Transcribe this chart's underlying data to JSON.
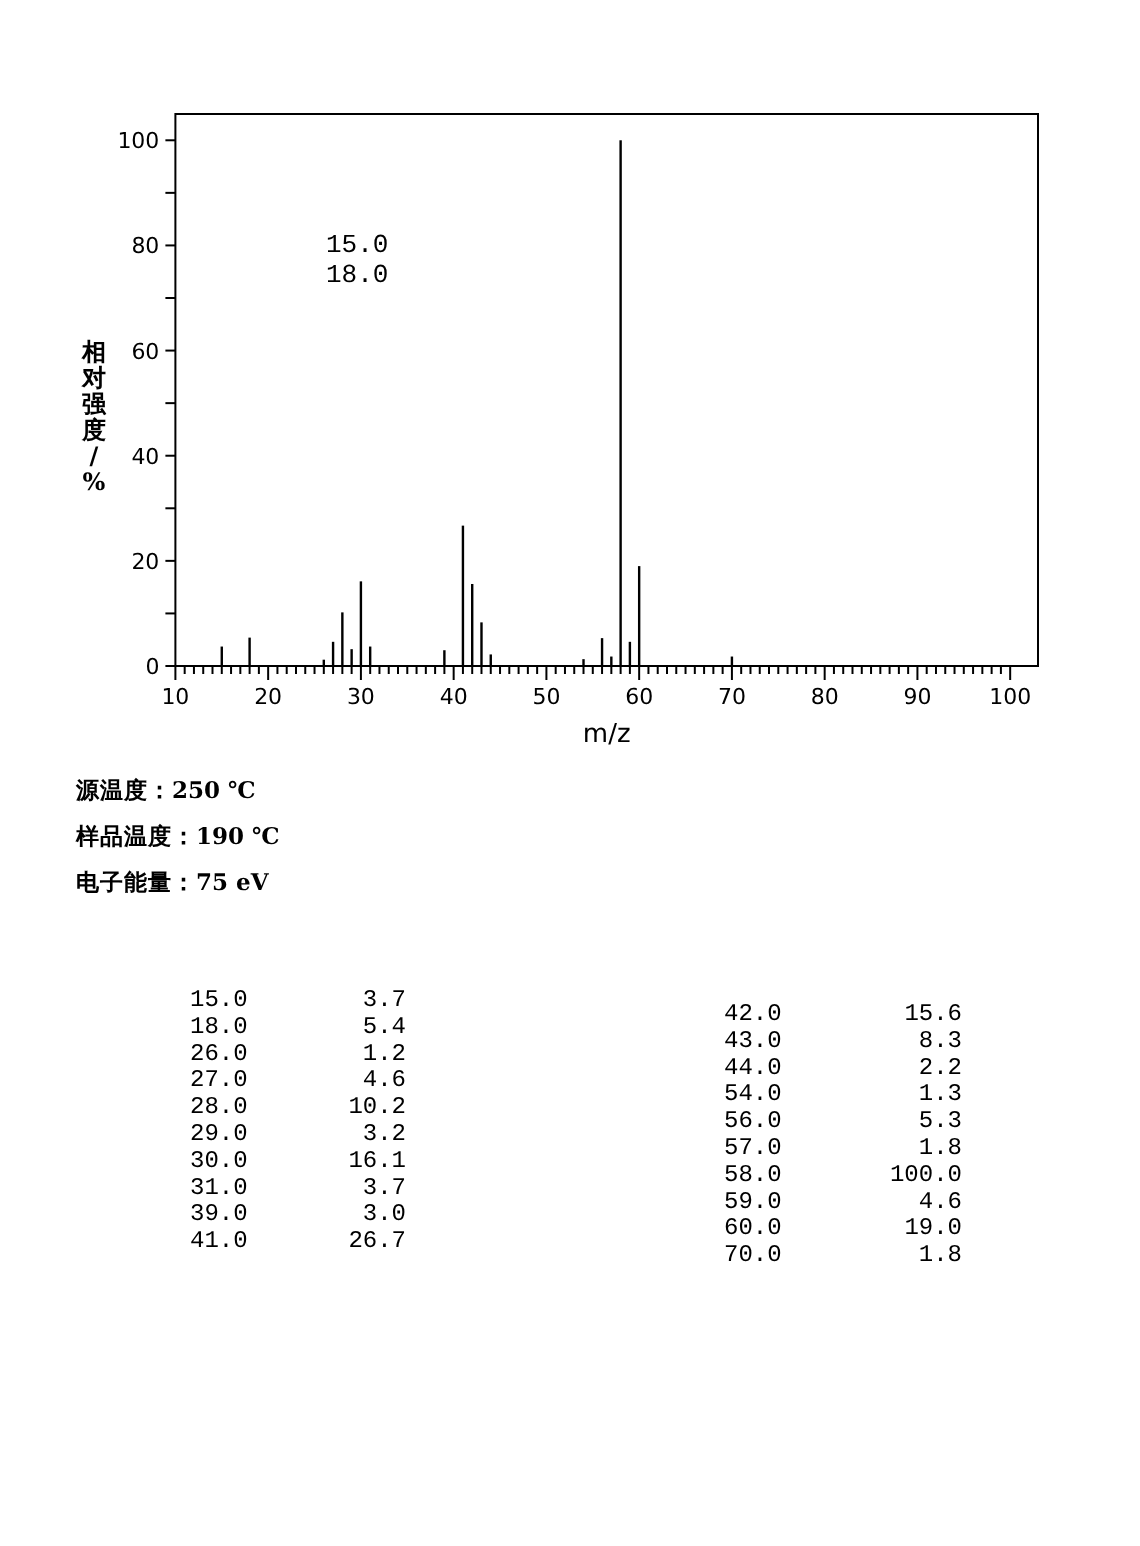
{
  "chart_data": {
    "type": "bar",
    "xlabel": "m/z",
    "ylabel": "相对强度/%",
    "color": "#000000",
    "x": [
      15,
      18,
      26,
      27,
      28,
      29,
      30,
      31,
      39,
      41,
      42,
      43,
      44,
      54,
      56,
      57,
      58,
      59,
      60,
      70
    ],
    "values": [
      3.7,
      5.4,
      1.2,
      4.6,
      10.2,
      3.2,
      16.1,
      3.7,
      3.0,
      26.7,
      15.6,
      8.3,
      2.2,
      1.3,
      5.3,
      1.8,
      100.0,
      4.6,
      19.0,
      1.8
    ],
    "xlim": [
      10,
      103
    ],
    "ylim": [
      0,
      105
    ],
    "xticks": [
      10,
      20,
      30,
      40,
      50,
      60,
      70,
      80,
      90,
      100
    ],
    "yticks": [
      0,
      {
        "value": 10,
        "label": null
      },
      20,
      {
        "value": 30,
        "label": null
      },
      40,
      {
        "value": 50,
        "label": null
      },
      60,
      {
        "value": 70,
        "label": null
      },
      80,
      {
        "value": 90,
        "label": null
      },
      100
    ],
    "annotations": [
      "15.0",
      "18.0",
      "源温度：250 ℃",
      "样品温度：190 ℃",
      "电子能量：75 eV",
      "15.0",
      "3.7",
      "18.0",
      "5.4",
      "26.0",
      "1.2",
      "27.0",
      "4.6",
      "28.0",
      "10.2",
      "29.0",
      "3.2",
      "30.0",
      "16.1",
      "31.0",
      "3.7",
      "39.0",
      "3.0",
      "41.0",
      "26.7",
      "42.0",
      "15.6",
      "43.0",
      "8.3",
      "44.0",
      "2.2",
      "54.0",
      "1.3",
      "56.0",
      "5.3",
      "57.0",
      "1.8",
      "58.0",
      "100.0",
      "59.0",
      "4.6",
      "60.0",
      "19.0",
      "70.0",
      "1.8"
    ]
  }
}
